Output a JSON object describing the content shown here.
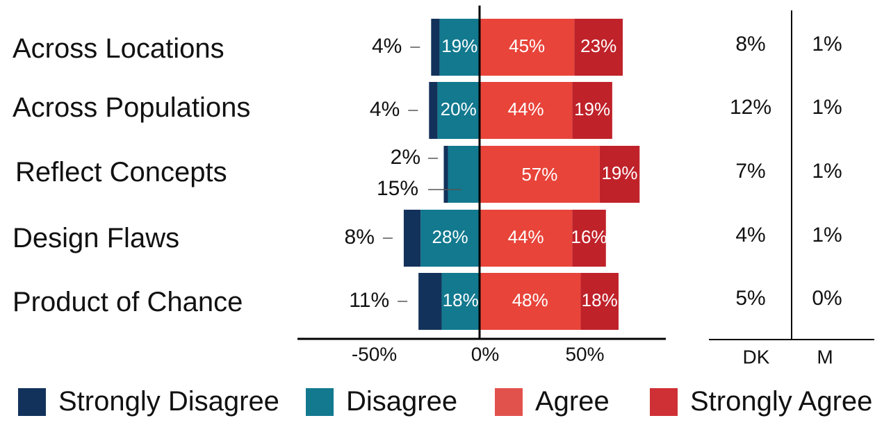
{
  "chart_data": {
    "type": "bar",
    "orientation": "horizontal-diverging",
    "categories": [
      "Across Locations",
      "Across Populations",
      "Reflect Concepts",
      "Design Flaws",
      "Product of Chance"
    ],
    "series": [
      {
        "name": "Strongly Disagree",
        "values": [
          4,
          4,
          2,
          8,
          11
        ],
        "color": "#13325b",
        "side": "negative"
      },
      {
        "name": "Disagree",
        "values": [
          19,
          20,
          15,
          28,
          18
        ],
        "color": "#12798f",
        "side": "negative"
      },
      {
        "name": "Agree",
        "values": [
          45,
          44,
          57,
          44,
          48
        ],
        "color": "#e8443a",
        "side": "positive"
      },
      {
        "name": "Strongly Agree",
        "values": [
          23,
          19,
          19,
          16,
          18
        ],
        "color": "#c0222a",
        "side": "positive"
      }
    ],
    "labels": {
      "strongly_disagree": [
        "4%",
        "4%",
        "2%",
        "8%",
        "11%"
      ],
      "disagree": [
        "19%",
        "20%",
        "15%",
        "28%",
        "18%"
      ],
      "agree": [
        "45%",
        "44%",
        "57%",
        "44%",
        "48%"
      ],
      "strongly_agree": [
        "23%",
        "19%",
        "19%",
        "16%",
        "18%"
      ]
    },
    "xticks": [
      "-50%",
      "0%",
      "50%"
    ],
    "xtick_values": [
      -50,
      0,
      50
    ],
    "xlim": [
      -90,
      90
    ],
    "side_table": {
      "headers": [
        "DK",
        "M"
      ],
      "DK": [
        "8%",
        "12%",
        "7%",
        "4%",
        "5%"
      ],
      "M": [
        "1%",
        "1%",
        "1%",
        "1%",
        "0%"
      ]
    },
    "legend_position": "bottom"
  }
}
